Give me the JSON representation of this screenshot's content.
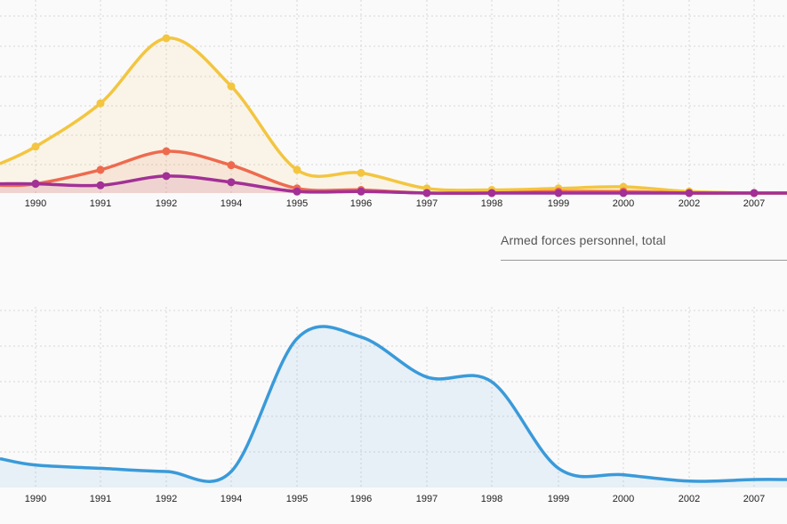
{
  "chart_data": [
    {
      "type": "area",
      "title": "",
      "categories": [
        "1990",
        "1991",
        "1992",
        "1994",
        "1995",
        "1996",
        "1997",
        "1998",
        "1999",
        "2000",
        "2002",
        "2007"
      ],
      "ylim": [
        0,
        100
      ],
      "grid": true,
      "series": [
        {
          "color": "#f3c540",
          "values": [
            30,
            58,
            100,
            69,
            15,
            13,
            3,
            2,
            3,
            4,
            1,
            0
          ]
        },
        {
          "color": "#ee6a4e",
          "values": [
            6,
            15,
            27,
            18,
            3,
            2,
            0,
            0,
            1,
            1,
            0,
            0
          ]
        },
        {
          "color": "#a23096",
          "values": [
            6,
            5,
            11,
            7,
            1,
            1,
            0,
            0,
            0,
            0,
            0,
            0
          ]
        }
      ]
    },
    {
      "type": "area",
      "title": "Armed forces personnel, total",
      "categories": [
        "1990",
        "1991",
        "1992",
        "1994",
        "1995",
        "1996",
        "1997",
        "1998",
        "1999",
        "2000",
        "2002",
        "2007"
      ],
      "ylim": [
        0,
        100
      ],
      "grid": true,
      "series": [
        {
          "color": "#3a9ad9",
          "values": [
            14,
            12,
            10,
            10,
            93,
            94,
            69,
            66,
            12,
            8,
            4,
            5
          ]
        }
      ]
    }
  ]
}
